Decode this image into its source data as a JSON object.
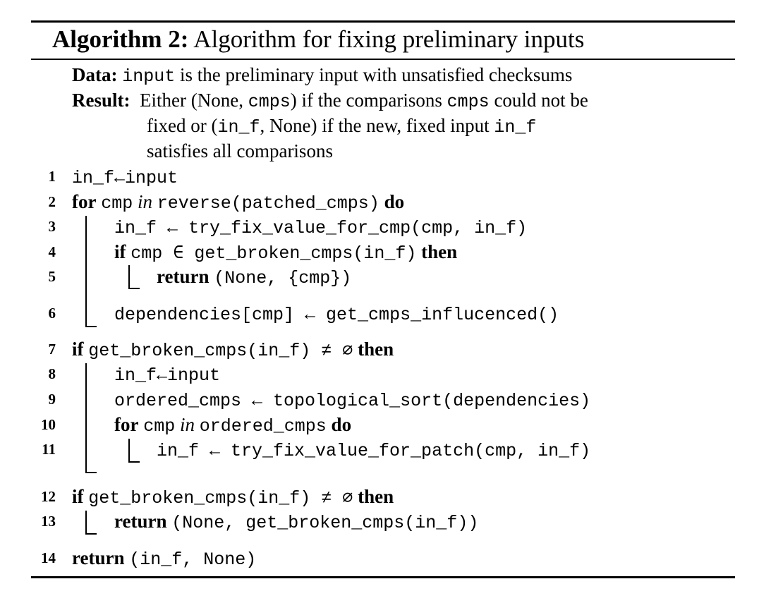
{
  "algorithm": {
    "label": "Algorithm 2:",
    "title": "Algorithm for fixing preliminary inputs",
    "data_label": "Data:",
    "data_code": "input",
    "data_text": " is the preliminary input with unsatisfied checksums",
    "result_label": "Result:",
    "result_l1_a": "Either (None, ",
    "result_l1_code": "cmps",
    "result_l1_b": ") if the comparisons ",
    "result_l1_code2": "cmps",
    "result_l1_c": " could not be",
    "result_l2_a": "fixed or (",
    "result_l2_code": "in_f",
    "result_l2_b": ", None) if the new, fixed input ",
    "result_l2_code2": "in_f",
    "result_l3": "satisfies all comparisons"
  },
  "keywords": {
    "for": "for",
    "in": "in",
    "do": "do",
    "if": "if",
    "then": "then",
    "return": "return"
  },
  "lines": [
    {
      "num": "1",
      "code": "in_f←input"
    },
    {
      "num": "2",
      "a": "cmp",
      "b": "reverse(patched_cmps)"
    },
    {
      "num": "3",
      "code": "in_f ← try_fix_value_for_cmp(cmp, in_f)"
    },
    {
      "num": "4",
      "code": "cmp ∈ get_broken_cmps(in_f)"
    },
    {
      "num": "5",
      "code": "(None, {cmp})"
    },
    {
      "num": "6",
      "code": "dependencies[cmp] ← get_cmps_influcenced()"
    },
    {
      "num": "7",
      "code": "get_broken_cmps(in_f) ≠ ∅"
    },
    {
      "num": "8",
      "code": "in_f←input"
    },
    {
      "num": "9",
      "code": "ordered_cmps ← topological_sort(dependencies)"
    },
    {
      "num": "10",
      "a": "cmp",
      "b": "ordered_cmps"
    },
    {
      "num": "11",
      "code": "in_f ← try_fix_value_for_patch(cmp, in_f)"
    },
    {
      "num": "12",
      "code": "get_broken_cmps(in_f) ≠ ∅"
    },
    {
      "num": "13",
      "code": "(None, get_broken_cmps(in_f))"
    },
    {
      "num": "14",
      "code": "(in_f, None)"
    }
  ]
}
